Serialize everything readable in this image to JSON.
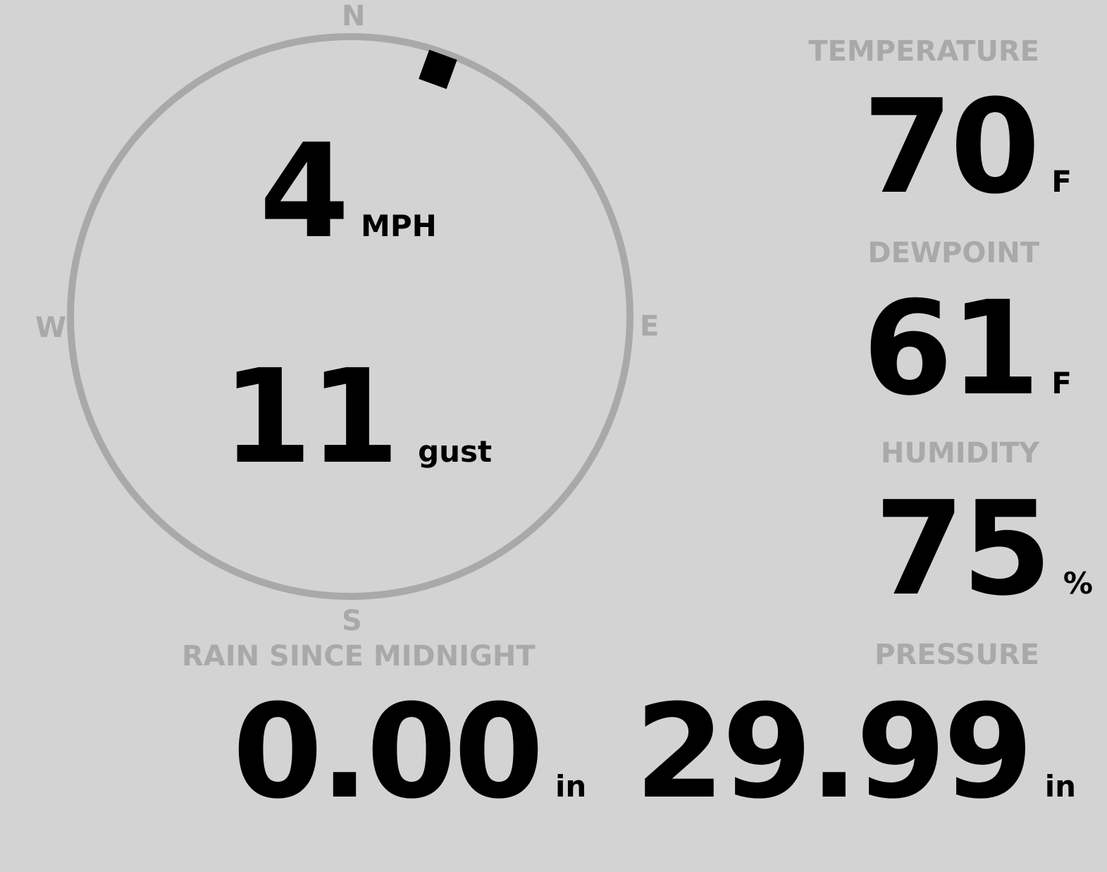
{
  "wind": {
    "compass": {
      "n": "N",
      "e": "E",
      "s": "S",
      "w": "W"
    },
    "speed": "4",
    "speed_unit": "MPH",
    "gust": "11",
    "gust_unit": "gust",
    "direction_deg": 20
  },
  "temperature": {
    "label": "TEMPERATURE",
    "value": "70",
    "unit": "F"
  },
  "dewpoint": {
    "label": "DEWPOINT",
    "value": "61",
    "unit": "F"
  },
  "humidity": {
    "label": "HUMIDITY",
    "value": "75",
    "unit": "%"
  },
  "rain": {
    "label": "RAIN SINCE MIDNIGHT",
    "value": "0.00",
    "unit": "in"
  },
  "pressure": {
    "label": "PRESSURE",
    "value": "29.99",
    "unit": "in"
  },
  "colors": {
    "background": "#d3d3d3",
    "label": "#a9a9a9",
    "value": "#000000"
  }
}
